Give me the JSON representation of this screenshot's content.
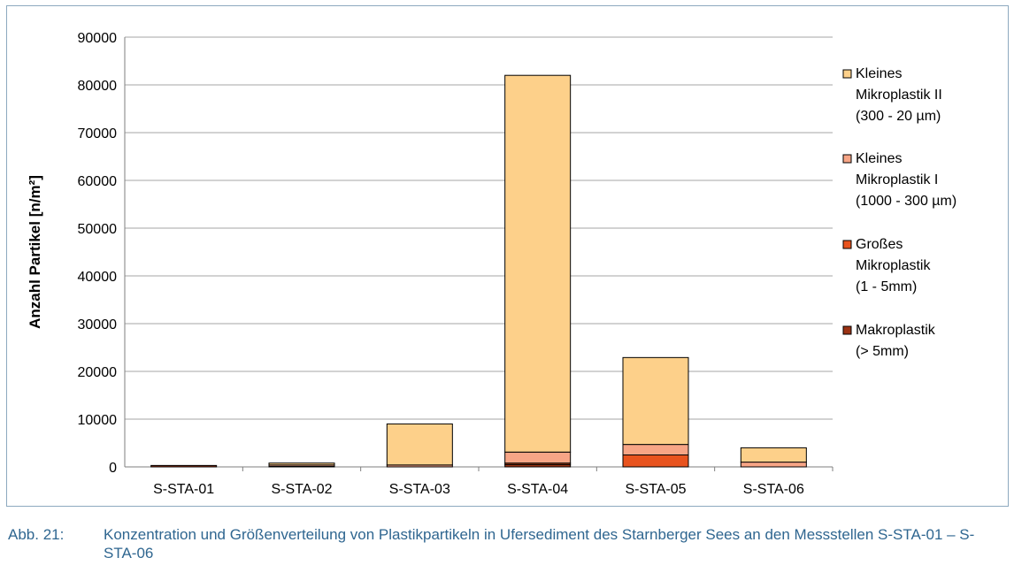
{
  "chart_data": {
    "type": "bar",
    "stacked": true,
    "ylabel": "Anzahl Partikel [n/m²]",
    "ylim": [
      0,
      90000
    ],
    "yticks": [
      "0",
      "10000",
      "20000",
      "30000",
      "40000",
      "50000",
      "60000",
      "70000",
      "80000",
      "90000"
    ],
    "grid": true,
    "legend_position": "right",
    "categories": [
      "S-STA-01",
      "S-STA-02",
      "S-STA-03",
      "S-STA-04",
      "S-STA-05",
      "S-STA-06"
    ],
    "series": [
      {
        "name": "Makroplastik (> 5mm)",
        "legend_lines": [
          "Makroplastik",
          "(> 5mm)"
        ],
        "color": "#9b3213",
        "values": [
          300,
          0,
          0,
          500,
          0,
          0
        ]
      },
      {
        "name": "Großes Mikroplastik (1 - 5mm)",
        "legend_lines": [
          "Großes",
          "Mikroplastik",
          "(1 - 5mm)"
        ],
        "color": "#e8531e",
        "values": [
          0,
          100,
          0,
          300,
          2500,
          0
        ]
      },
      {
        "name": "Kleines Mikroplastik I (1000 - 300 µm)",
        "legend_lines": [
          "Kleines",
          "Mikroplastik I",
          "(1000 - 300 µm)"
        ],
        "color": "#f7a586",
        "values": [
          0,
          300,
          400,
          2300,
          2200,
          1000
        ]
      },
      {
        "name": "Kleines Mikroplastik II (300 - 20 µm)",
        "legend_lines": [
          "Kleines",
          "Mikroplastik II",
          "(300 - 20 µm)"
        ],
        "color": "#fdd08a",
        "values": [
          0,
          400,
          8600,
          78900,
          18200,
          3000
        ]
      }
    ]
  },
  "caption": {
    "number": "Abb. 21:",
    "text": "Konzentration und Größenverteilung von Plastikpartikeln in Ufersediment des Starnberger Sees an den Messstellen S-STA-01 – S-STA-06"
  }
}
